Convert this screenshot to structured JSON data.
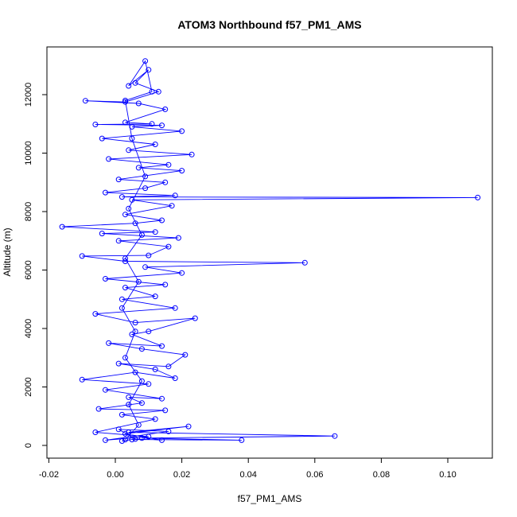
{
  "chart_data": {
    "type": "line",
    "title": "ATOM3 Northbound f57_PM1_AMS",
    "xlabel": "f57_PM1_AMS",
    "ylabel": "Altitude (m)",
    "xlim": [
      -0.02,
      0.11
    ],
    "ylim": [
      0,
      13000
    ],
    "xticks": [
      -0.02,
      0,
      0.02,
      0.04,
      0.06,
      0.08,
      0.1
    ],
    "xtick_labels": [
      "-0.02",
      "0.00",
      "0.02",
      "0.04",
      "0.06",
      "0.08",
      "0.10"
    ],
    "yticks": [
      0,
      2000,
      4000,
      6000,
      8000,
      10000,
      12000
    ],
    "ytick_labels": [
      "0",
      "2000",
      "4000",
      "6000",
      "8000",
      "10000",
      "12000"
    ],
    "grid": false,
    "marker": "open-circle",
    "series": [
      {
        "color": "#0000ff",
        "points": [
          [
            0.002,
            150
          ],
          [
            0.005,
            200
          ],
          [
            0.038,
            180
          ],
          [
            0.008,
            250
          ],
          [
            0.066,
            320
          ],
          [
            0.004,
            450
          ],
          [
            0.022,
            650
          ],
          [
            0.003,
            400
          ],
          [
            0.014,
            180
          ],
          [
            0.006,
            220
          ],
          [
            0.001,
            550
          ],
          [
            0.016,
            480
          ],
          [
            -0.003,
            180
          ],
          [
            0.01,
            300
          ],
          [
            -0.006,
            450
          ],
          [
            0.012,
            900
          ],
          [
            0.002,
            1050
          ],
          [
            0.015,
            1200
          ],
          [
            -0.005,
            1250
          ],
          [
            0.008,
            1450
          ],
          [
            0.004,
            1650
          ],
          [
            0.014,
            1600
          ],
          [
            -0.003,
            1900
          ],
          [
            0.01,
            2100
          ],
          [
            -0.01,
            2250
          ],
          [
            0.006,
            2500
          ],
          [
            0.018,
            2300
          ],
          [
            0.012,
            2600
          ],
          [
            0.001,
            2800
          ],
          [
            0.016,
            2700
          ],
          [
            0.021,
            3100
          ],
          [
            0.008,
            3300
          ],
          [
            -0.002,
            3500
          ],
          [
            0.014,
            3400
          ],
          [
            0.005,
            3800
          ],
          [
            0.01,
            3900
          ],
          [
            0.024,
            4350
          ],
          [
            0.006,
            4200
          ],
          [
            -0.006,
            4500
          ],
          [
            0.018,
            4700
          ],
          [
            0.002,
            5000
          ],
          [
            0.012,
            5100
          ],
          [
            0.003,
            5400
          ],
          [
            0.015,
            5500
          ],
          [
            -0.003,
            5700
          ],
          [
            0.02,
            5900
          ],
          [
            0.009,
            6100
          ],
          [
            0.057,
            6250
          ],
          [
            0.003,
            6300
          ],
          [
            -0.01,
            6480
          ],
          [
            0.01,
            6500
          ],
          [
            0.016,
            6800
          ],
          [
            0.001,
            7000
          ],
          [
            0.019,
            7100
          ],
          [
            -0.004,
            7250
          ],
          [
            0.012,
            7300
          ],
          [
            -0.016,
            7480
          ],
          [
            0.006,
            7600
          ],
          [
            0.014,
            7700
          ],
          [
            0.003,
            7900
          ],
          [
            0.017,
            8200
          ],
          [
            0.005,
            8400
          ],
          [
            0.109,
            8480
          ],
          [
            0.002,
            8500
          ],
          [
            0.018,
            8550
          ],
          [
            -0.003,
            8650
          ],
          [
            0.009,
            8800
          ],
          [
            0.015,
            9000
          ],
          [
            0.001,
            9100
          ],
          [
            0.02,
            9400
          ],
          [
            0.007,
            9500
          ],
          [
            0.016,
            9600
          ],
          [
            -0.002,
            9800
          ],
          [
            0.023,
            9950
          ],
          [
            0.004,
            10100
          ],
          [
            0.012,
            10300
          ],
          [
            -0.004,
            10500
          ],
          [
            0.02,
            10750
          ],
          [
            0.005,
            10900
          ],
          [
            0.014,
            10950
          ],
          [
            -0.006,
            10980
          ],
          [
            0.011,
            11000
          ],
          [
            0.003,
            11050
          ],
          [
            0.015,
            11500
          ],
          [
            0.007,
            11700
          ],
          [
            -0.009,
            11790
          ],
          [
            0.003,
            11750
          ],
          [
            0.013,
            12100
          ],
          [
            0.006,
            12400
          ],
          [
            0.01,
            12850
          ],
          [
            0.004,
            12300
          ],
          [
            0.009,
            13150
          ],
          [
            0.011,
            12100
          ],
          [
            0.003,
            11800
          ],
          [
            0.005,
            10500
          ],
          [
            0.009,
            9200
          ],
          [
            0.004,
            8100
          ],
          [
            0.008,
            7200
          ],
          [
            0.003,
            6400
          ],
          [
            0.007,
            5600
          ],
          [
            0.002,
            4700
          ],
          [
            0.006,
            3900
          ],
          [
            0.003,
            3000
          ],
          [
            0.008,
            2200
          ],
          [
            0.004,
            1400
          ],
          [
            0.007,
            700
          ],
          [
            0.003,
            200
          ]
        ]
      }
    ]
  }
}
